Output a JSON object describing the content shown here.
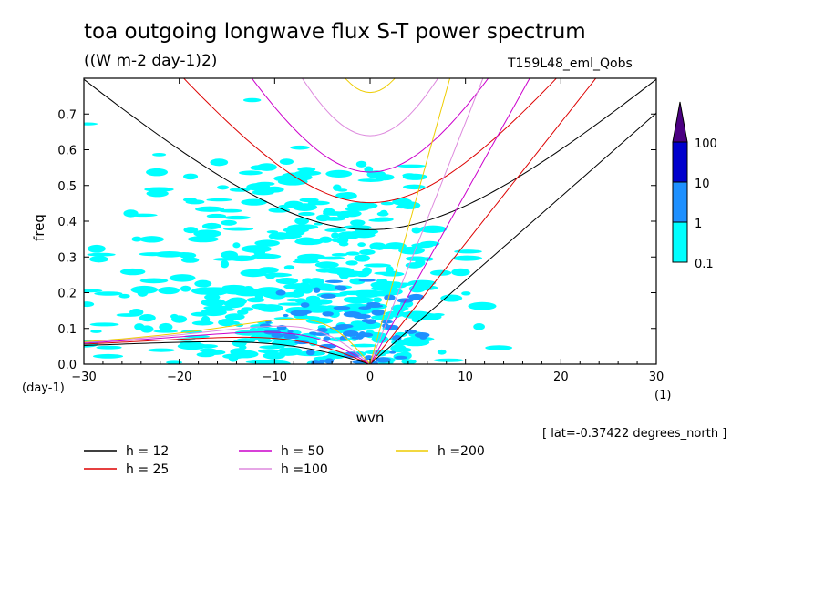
{
  "title": "toa outgoing longwave flux S-T power spectrum",
  "subtitle": "((W m-2 day-1)2)",
  "experiment": "T159L48_eml_Qobs",
  "note": "[ lat=-0.37422 degrees_north ]",
  "colors": {
    "level_0_1": "#00ffff",
    "level_1": "#1e90ff",
    "level_10": "#0000cd",
    "level_100": "#4b0082"
  },
  "chart_data": {
    "type": "heatmap",
    "title": "toa outgoing longwave flux S-T power spectrum",
    "subtitle": "((W m-2 day-1)2)",
    "xlabel": "wvn",
    "xunit": "(1)",
    "ylabel": "freq",
    "yunit": "(day-1)",
    "xlim": [
      -30,
      30
    ],
    "ylim": [
      0,
      0.8
    ],
    "xticks": [
      -30,
      -20,
      -10,
      0,
      10,
      20,
      30
    ],
    "yticks": [
      0.0,
      0.1,
      0.2,
      0.3,
      0.4,
      0.5,
      0.6,
      0.7
    ],
    "colorbar": {
      "levels": [
        "0.1",
        "1",
        "10",
        "100"
      ],
      "colors": [
        "#00ffff",
        "#1e90ff",
        "#0000cd",
        "#4b0082"
      ]
    },
    "dispersion_curves": [
      {
        "name": "h = 12",
        "h": 12,
        "color": "#000000"
      },
      {
        "name": "h = 25",
        "h": 25,
        "color": "#dd0000"
      },
      {
        "name": "h = 50",
        "h": 50,
        "color": "#cc00cc"
      },
      {
        "name": "h =100",
        "h": 100,
        "color": "#dd88dd"
      },
      {
        "name": "h =200",
        "h": 200,
        "color": "#eecc00"
      }
    ]
  }
}
